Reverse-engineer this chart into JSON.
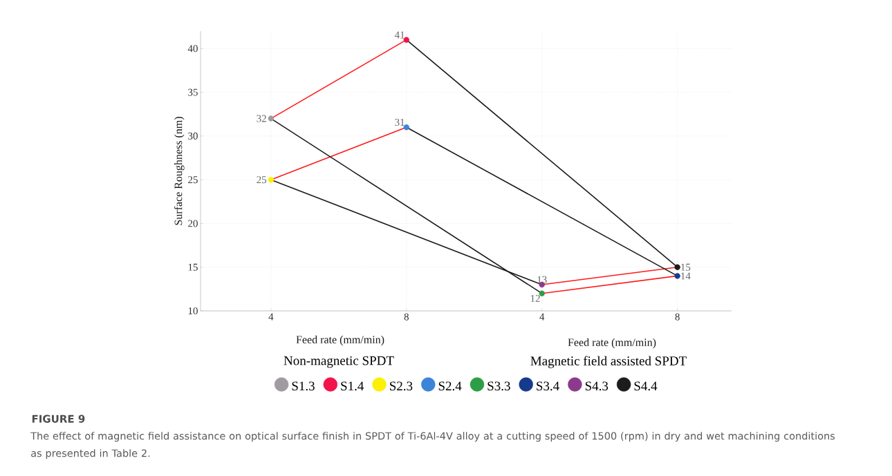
{
  "chart_data": {
    "type": "scatter",
    "title": "FIGURE 9",
    "xlabel": "Feed rate (mm/min)",
    "ylabel": "Surface Roughness (nm)",
    "annotations": [
      "Feed rate (mm/min)",
      "Non-magnetic SPDT",
      "Magnetic field assisted SPDT",
      "The effect of magnetic field assistance on optical surface finish in SPDT of Ti-6Al-4V alloy at a cutting speed of 1500 (rpm) in dry and wet machining conditions as presented in Table 2."
    ],
    "categories": [
      "4",
      "8",
      "4",
      "8"
    ],
    "ylim": [
      10,
      42
    ],
    "yticks": [
      10,
      15,
      20,
      25,
      30,
      35,
      40
    ],
    "grid": true,
    "legend": "bottom",
    "series": [
      {
        "type": "line",
        "color": "#ff1a1a",
        "values": [
          32,
          41,
          null,
          null
        ]
      },
      {
        "type": "line",
        "color": "#ff1a1a",
        "values": [
          25,
          31,
          null,
          null
        ]
      },
      {
        "type": "line",
        "color": "#ff1a1a",
        "values": [
          null,
          null,
          12,
          14
        ]
      },
      {
        "type": "line",
        "color": "#ff1a1a",
        "values": [
          null,
          null,
          13,
          15
        ]
      },
      {
        "type": "line",
        "color": "#1a1a1a",
        "values": [
          null,
          41,
          null,
          15
        ]
      },
      {
        "type": "line",
        "color": "#1a1a1a",
        "values": [
          null,
          31,
          null,
          14
        ]
      },
      {
        "type": "line",
        "color": "#1a1a1a",
        "values": [
          32,
          null,
          12,
          null
        ]
      },
      {
        "type": "line",
        "color": "#1a1a1a",
        "values": [
          25,
          null,
          13,
          null
        ]
      },
      {
        "name": "S1.3",
        "marker": "circle",
        "color": "#a09ba2",
        "values": [
          32,
          null,
          null,
          null
        ],
        "value_labels": [
          "32",
          null,
          null,
          null
        ]
      },
      {
        "name": "S1.4",
        "marker": "circle",
        "color": "#f2134d",
        "values": [
          null,
          41,
          null,
          null
        ],
        "value_labels": [
          null,
          "41",
          null,
          null
        ]
      },
      {
        "name": "S2.3",
        "marker": "circle",
        "color": "#fcf007",
        "values": [
          25,
          null,
          null,
          null
        ],
        "value_labels": [
          "25",
          null,
          null,
          null
        ]
      },
      {
        "name": "S2.4",
        "marker": "circle",
        "color": "#3c84d8",
        "values": [
          null,
          31,
          null,
          null
        ],
        "value_labels": [
          null,
          "31",
          null,
          null
        ]
      },
      {
        "name": "S3.3",
        "marker": "circle",
        "color": "#2e9e46",
        "values": [
          null,
          null,
          12,
          null
        ],
        "value_labels": [
          null,
          null,
          "12",
          null
        ]
      },
      {
        "name": "S3.4",
        "marker": "circle",
        "color": "#173b8c",
        "values": [
          null,
          null,
          null,
          14
        ],
        "value_labels": [
          null,
          null,
          null,
          "14"
        ]
      },
      {
        "name": "S4.3",
        "marker": "circle",
        "color": "#8c3a8c",
        "values": [
          null,
          null,
          13,
          null
        ],
        "value_labels": [
          null,
          null,
          "13",
          null
        ]
      },
      {
        "name": "S4.4",
        "marker": "circle",
        "color": "#1c1c1c",
        "values": [
          null,
          null,
          null,
          15
        ],
        "value_labels": [
          null,
          null,
          null,
          "15"
        ]
      }
    ]
  }
}
